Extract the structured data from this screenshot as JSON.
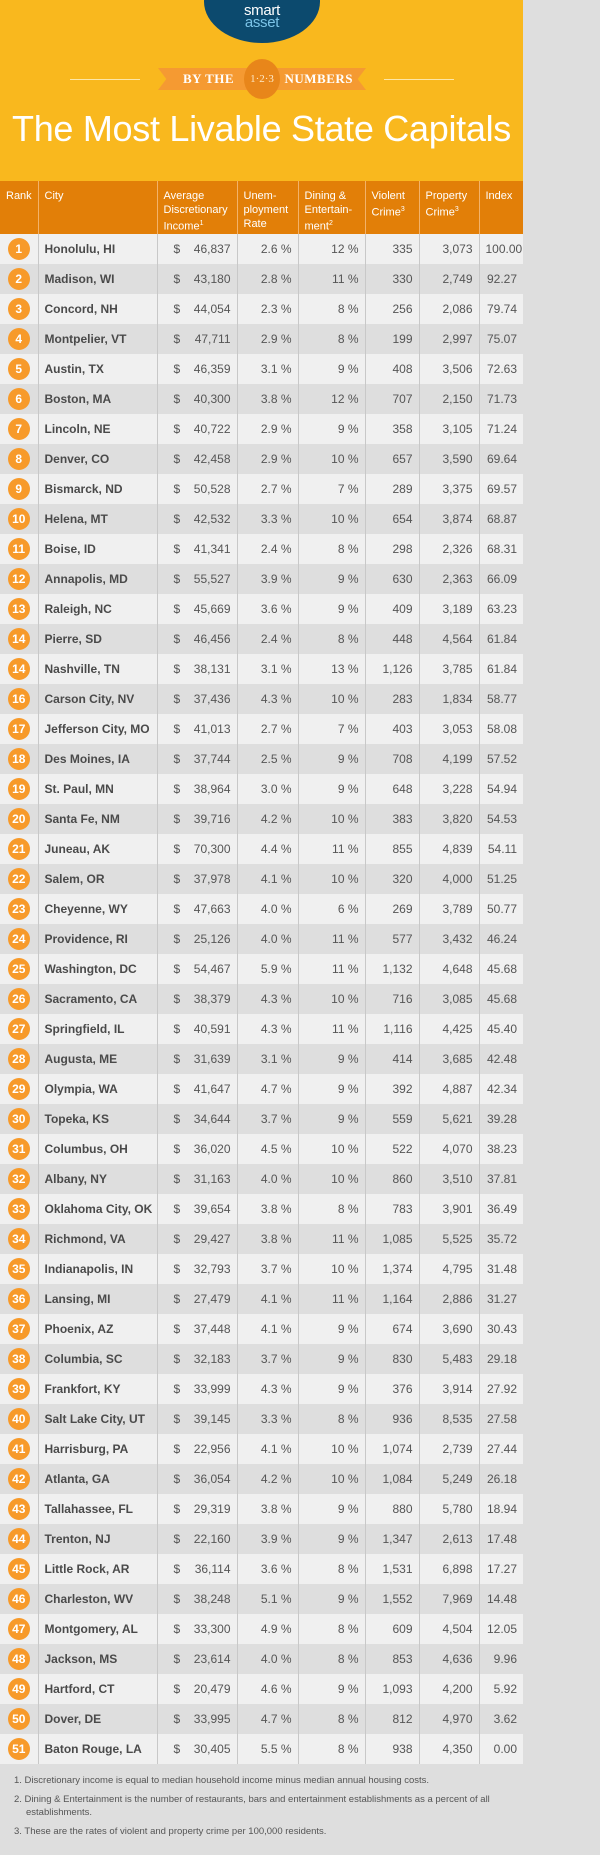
{
  "brand": {
    "logo_text_a": "smart",
    "logo_text_b": "asset",
    "logo_color": "#0c4a6e"
  },
  "banner": {
    "left": "BY THE",
    "badge": "1·2·3",
    "right": "NUMBERS"
  },
  "title": "The Most Livable State Capitals",
  "colors": {
    "background": "#f9b81e",
    "header": "#e27f08",
    "rank_circle": "#f79a2a"
  },
  "columns": [
    {
      "label": "Rank",
      "sup": ""
    },
    {
      "label": "City",
      "sup": ""
    },
    {
      "label": "Average Discretionary Income",
      "sup": "1"
    },
    {
      "label": "Unem-ployment Rate",
      "sup": ""
    },
    {
      "label": "Dining & Entertain-ment",
      "sup": "2"
    },
    {
      "label": "Violent Crime",
      "sup": "3"
    },
    {
      "label": "Property Crime",
      "sup": "3"
    },
    {
      "label": "Index",
      "sup": ""
    }
  ],
  "rows": [
    [
      "1",
      "Honolulu, HI",
      "46,837",
      "2.6 %",
      "12 %",
      "335",
      "3,073",
      "100.00"
    ],
    [
      "2",
      "Madison, WI",
      "43,180",
      "2.8 %",
      "11 %",
      "330",
      "2,749",
      "92.27"
    ],
    [
      "3",
      "Concord, NH",
      "44,054",
      "2.3 %",
      "8 %",
      "256",
      "2,086",
      "79.74"
    ],
    [
      "4",
      "Montpelier, VT",
      "47,711",
      "2.9 %",
      "8 %",
      "199",
      "2,997",
      "75.07"
    ],
    [
      "5",
      "Austin, TX",
      "46,359",
      "3.1 %",
      "9 %",
      "408",
      "3,506",
      "72.63"
    ],
    [
      "6",
      "Boston, MA",
      "40,300",
      "3.8 %",
      "12 %",
      "707",
      "2,150",
      "71.73"
    ],
    [
      "7",
      "Lincoln, NE",
      "40,722",
      "2.9 %",
      "9 %",
      "358",
      "3,105",
      "71.24"
    ],
    [
      "8",
      "Denver, CO",
      "42,458",
      "2.9 %",
      "10 %",
      "657",
      "3,590",
      "69.64"
    ],
    [
      "9",
      "Bismarck, ND",
      "50,528",
      "2.7 %",
      "7 %",
      "289",
      "3,375",
      "69.57"
    ],
    [
      "10",
      "Helena, MT",
      "42,532",
      "3.3 %",
      "10 %",
      "654",
      "3,874",
      "68.87"
    ],
    [
      "11",
      "Boise, ID",
      "41,341",
      "2.4 %",
      "8 %",
      "298",
      "2,326",
      "68.31"
    ],
    [
      "12",
      "Annapolis, MD",
      "55,527",
      "3.9 %",
      "9 %",
      "630",
      "2,363",
      "66.09"
    ],
    [
      "13",
      "Raleigh, NC",
      "45,669",
      "3.6 %",
      "9 %",
      "409",
      "3,189",
      "63.23"
    ],
    [
      "14",
      "Pierre, SD",
      "46,456",
      "2.4 %",
      "8 %",
      "448",
      "4,564",
      "61.84"
    ],
    [
      "14",
      "Nashville, TN",
      "38,131",
      "3.1 %",
      "13 %",
      "1,126",
      "3,785",
      "61.84"
    ],
    [
      "16",
      "Carson City, NV",
      "37,436",
      "4.3 %",
      "10 %",
      "283",
      "1,834",
      "58.77"
    ],
    [
      "17",
      "Jefferson City, MO",
      "41,013",
      "2.7 %",
      "7 %",
      "403",
      "3,053",
      "58.08"
    ],
    [
      "18",
      "Des Moines, IA",
      "37,744",
      "2.5 %",
      "9 %",
      "708",
      "4,199",
      "57.52"
    ],
    [
      "19",
      "St. Paul, MN",
      "38,964",
      "3.0 %",
      "9 %",
      "648",
      "3,228",
      "54.94"
    ],
    [
      "20",
      "Santa Fe, NM",
      "39,716",
      "4.2 %",
      "10 %",
      "383",
      "3,820",
      "54.53"
    ],
    [
      "21",
      "Juneau, AK",
      "70,300",
      "4.4 %",
      "11 %",
      "855",
      "4,839",
      "54.11"
    ],
    [
      "22",
      "Salem, OR",
      "37,978",
      "4.1 %",
      "10 %",
      "320",
      "4,000",
      "51.25"
    ],
    [
      "23",
      "Cheyenne, WY",
      "47,663",
      "4.0 %",
      "6 %",
      "269",
      "3,789",
      "50.77"
    ],
    [
      "24",
      "Providence, RI",
      "25,126",
      "4.0 %",
      "11 %",
      "577",
      "3,432",
      "46.24"
    ],
    [
      "25",
      "Washington, DC",
      "54,467",
      "5.9 %",
      "11 %",
      "1,132",
      "4,648",
      "45.68"
    ],
    [
      "26",
      "Sacramento, CA",
      "38,379",
      "4.3 %",
      "10 %",
      "716",
      "3,085",
      "45.68"
    ],
    [
      "27",
      "Springfield, IL",
      "40,591",
      "4.3 %",
      "11 %",
      "1,116",
      "4,425",
      "45.40"
    ],
    [
      "28",
      "Augusta, ME",
      "31,639",
      "3.1 %",
      "9 %",
      "414",
      "3,685",
      "42.48"
    ],
    [
      "29",
      "Olympia, WA",
      "41,647",
      "4.7 %",
      "9 %",
      "392",
      "4,887",
      "42.34"
    ],
    [
      "30",
      "Topeka, KS",
      "34,644",
      "3.7 %",
      "9 %",
      "559",
      "5,621",
      "39.28"
    ],
    [
      "31",
      "Columbus, OH",
      "36,020",
      "4.5 %",
      "10 %",
      "522",
      "4,070",
      "38.23"
    ],
    [
      "32",
      "Albany, NY",
      "31,163",
      "4.0 %",
      "10 %",
      "860",
      "3,510",
      "37.81"
    ],
    [
      "33",
      "Oklahoma City, OK",
      "39,654",
      "3.8 %",
      "8 %",
      "783",
      "3,901",
      "36.49"
    ],
    [
      "34",
      "Richmond, VA",
      "29,427",
      "3.8 %",
      "11 %",
      "1,085",
      "5,525",
      "35.72"
    ],
    [
      "35",
      "Indianapolis, IN",
      "32,793",
      "3.7 %",
      "10 %",
      "1,374",
      "4,795",
      "31.48"
    ],
    [
      "36",
      "Lansing, MI",
      "27,479",
      "4.1 %",
      "11 %",
      "1,164",
      "2,886",
      "31.27"
    ],
    [
      "37",
      "Phoenix, AZ",
      "37,448",
      "4.1 %",
      "9 %",
      "674",
      "3,690",
      "30.43"
    ],
    [
      "38",
      "Columbia, SC",
      "32,183",
      "3.7 %",
      "9 %",
      "830",
      "5,483",
      "29.18"
    ],
    [
      "39",
      "Frankfort, KY",
      "33,999",
      "4.3 %",
      "9 %",
      "376",
      "3,914",
      "27.92"
    ],
    [
      "40",
      "Salt Lake City, UT",
      "39,145",
      "3.3 %",
      "8 %",
      "936",
      "8,535",
      "27.58"
    ],
    [
      "41",
      "Harrisburg, PA",
      "22,956",
      "4.1 %",
      "10 %",
      "1,074",
      "2,739",
      "27.44"
    ],
    [
      "42",
      "Atlanta, GA",
      "36,054",
      "4.2 %",
      "10 %",
      "1,084",
      "5,249",
      "26.18"
    ],
    [
      "43",
      "Tallahassee, FL",
      "29,319",
      "3.8 %",
      "9 %",
      "880",
      "5,780",
      "18.94"
    ],
    [
      "44",
      "Trenton, NJ",
      "22,160",
      "3.9 %",
      "9 %",
      "1,347",
      "2,613",
      "17.48"
    ],
    [
      "45",
      "Little Rock, AR",
      "36,114",
      "3.6 %",
      "8 %",
      "1,531",
      "6,898",
      "17.27"
    ],
    [
      "46",
      "Charleston, WV",
      "38,248",
      "5.1 %",
      "9 %",
      "1,552",
      "7,969",
      "14.48"
    ],
    [
      "47",
      "Montgomery, AL",
      "33,300",
      "4.9 %",
      "8 %",
      "609",
      "4,504",
      "12.05"
    ],
    [
      "48",
      "Jackson, MS",
      "23,614",
      "4.0 %",
      "8 %",
      "853",
      "4,636",
      "9.96"
    ],
    [
      "49",
      "Hartford, CT",
      "20,479",
      "4.6 %",
      "9 %",
      "1,093",
      "4,200",
      "5.92"
    ],
    [
      "50",
      "Dover, DE",
      "33,995",
      "4.7 %",
      "8 %",
      "812",
      "4,970",
      "3.62"
    ],
    [
      "51",
      "Baton Rouge, LA",
      "30,405",
      "5.5 %",
      "8 %",
      "938",
      "4,350",
      "0.00"
    ]
  ],
  "currency": "$",
  "footnotes": [
    "1. Discretionary income is equal to median household income minus median annual housing costs.",
    "2. Dining & Entertainment is the number of restaurants, bars and entertainment establishments as a percent of all establishments.",
    "3. These are the rates of violent and property crime per 100,000 residents."
  ]
}
